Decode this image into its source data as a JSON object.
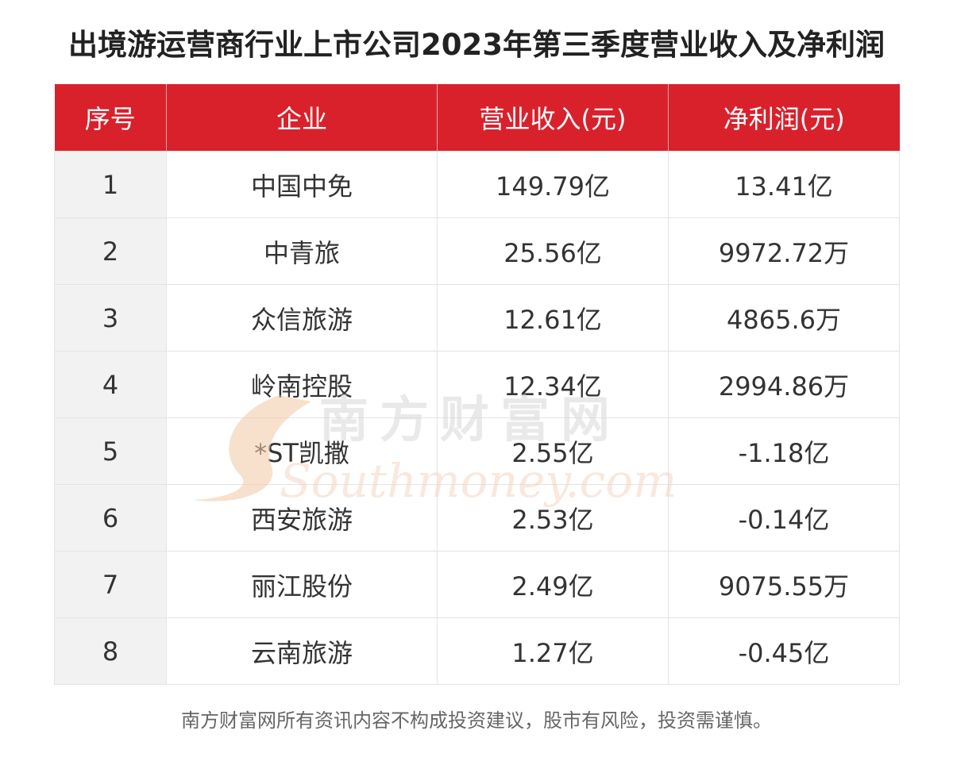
{
  "title": "出境游运营商行业上市公司2023年第三季度营业收入及净利润",
  "table": {
    "headers": [
      "序号",
      "企业",
      "营业收入(元)",
      "净利润(元)"
    ],
    "rows": [
      [
        "1",
        "中国中免",
        "149.79亿",
        "13.41亿"
      ],
      [
        "2",
        "中青旅",
        "25.56亿",
        "9972.72万"
      ],
      [
        "3",
        "众信旅游",
        "12.61亿",
        "4865.6万"
      ],
      [
        "4",
        "岭南控股",
        "12.34亿",
        "2994.86万"
      ],
      [
        "5",
        "*ST凯撒",
        "2.55亿",
        "-1.18亿"
      ],
      [
        "6",
        "西安旅游",
        "2.53亿",
        "-0.14亿"
      ],
      [
        "7",
        "丽江股份",
        "2.49亿",
        "9075.55万"
      ],
      [
        "8",
        "云南旅游",
        "1.27亿",
        "-0.45亿"
      ]
    ]
  },
  "watermark": {
    "cn": "南方财富网",
    "en": "Southmoney.com"
  },
  "disclaimer": "南方财富网所有资讯内容不构成投资建议，股市有风险，投资需谨慎。",
  "colors": {
    "header_bg": "#d9212c",
    "header_text": "#ffffff",
    "index_col_bg": "#f2f2f2"
  }
}
